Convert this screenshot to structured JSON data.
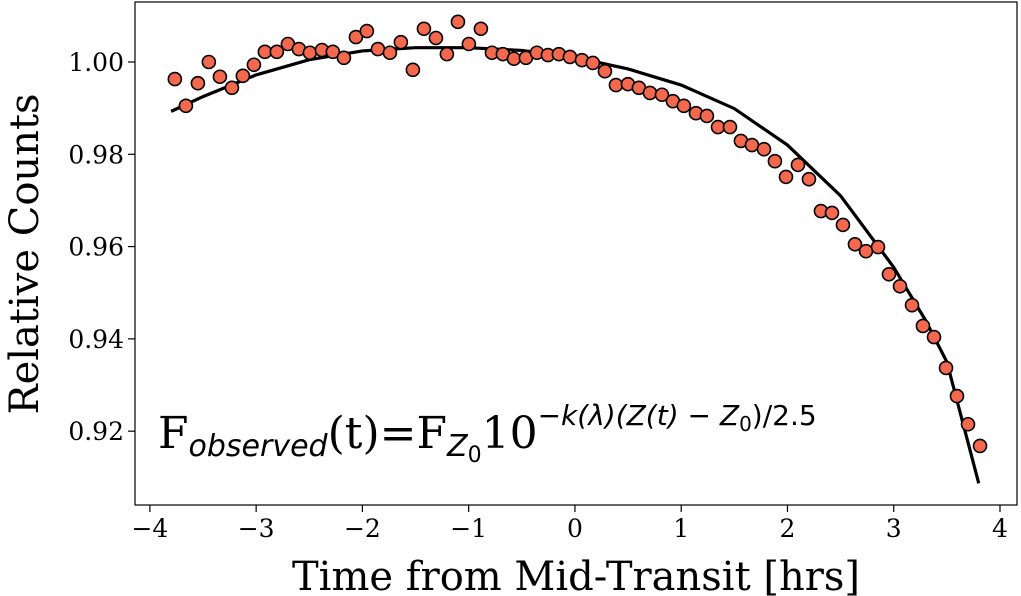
{
  "chart_data": {
    "type": "scatter",
    "xlabel": "Time from Mid-Transit [hrs]",
    "ylabel": "Relative Counts",
    "annotation": [
      "F",
      "observed",
      "(t)=F",
      "Z",
      "0",
      "10",
      "−k(λ)(Z(t) − Z",
      "0",
      ")/2.5"
    ],
    "xlim": [
      -4.14,
      4.16
    ],
    "ylim": [
      0.904,
      1.013
    ],
    "xticks": [
      {
        "value": -4,
        "label": "−4"
      },
      {
        "value": -3,
        "label": "−3"
      },
      {
        "value": -2,
        "label": "−2"
      },
      {
        "value": -1,
        "label": "−1"
      },
      0,
      1,
      2,
      3,
      4
    ],
    "yticks": [
      0.92,
      0.94,
      0.96,
      0.98,
      {
        "value": 1,
        "label": "1.00"
      }
    ],
    "color": "#f4684e",
    "edgecolor": "#000000",
    "x": [
      -3.765,
      -3.661,
      -3.548,
      -3.445,
      -3.341,
      -3.228,
      -3.125,
      -3.021,
      -2.918,
      -2.805,
      -2.701,
      -2.598,
      -2.494,
      -2.381,
      -2.278,
      -2.174,
      -2.061,
      -1.958,
      -1.854,
      -1.741,
      -1.638,
      -1.525,
      -1.421,
      -1.308,
      -1.205,
      -1.101,
      -0.998,
      -0.885,
      -0.781,
      -0.678,
      -0.574,
      -0.461,
      -0.358,
      -0.254,
      -0.151,
      -0.047,
      0.066,
      0.169,
      0.282,
      0.386,
      0.499,
      0.602,
      0.706,
      0.819,
      0.922,
      1.025,
      1.139,
      1.242,
      1.346,
      1.459,
      1.562,
      1.666,
      1.779,
      1.882,
      1.986,
      2.099,
      2.202,
      2.315,
      2.419,
      2.522,
      2.635,
      2.739,
      2.852,
      2.955,
      3.059,
      3.172,
      3.275,
      3.379,
      3.492,
      3.595,
      3.699,
      3.812
    ],
    "values": [
      0.9963,
      0.9905,
      0.9954,
      1.0,
      0.9968,
      0.9944,
      0.997,
      0.9994,
      1.0022,
      1.0022,
      1.0039,
      1.0028,
      1.002,
      1.0026,
      1.0022,
      1.0009,
      1.0054,
      1.0067,
      1.0028,
      1.002,
      1.0043,
      0.9983,
      1.0072,
      1.0052,
      1.0017,
      1.0087,
      1.0039,
      1.0072,
      1.002,
      1.0017,
      1.0007,
      1.0009,
      1.002,
      1.0015,
      1.0017,
      1.0011,
      1.0004,
      0.9998,
      0.998,
      0.995,
      0.9952,
      0.9944,
      0.9933,
      0.9929,
      0.9915,
      0.9905,
      0.9889,
      0.9883,
      0.9859,
      0.9859,
      0.9829,
      0.982,
      0.9811,
      0.9785,
      0.9751,
      0.9777,
      0.9746,
      0.9677,
      0.9673,
      0.9647,
      0.9605,
      0.959,
      0.9599,
      0.954,
      0.9514,
      0.9473,
      0.9428,
      0.9404,
      0.9337,
      0.9276,
      0.9215,
      0.9168
    ],
    "fit": {
      "color": "#000000",
      "x": [
        -3.8,
        -3.5,
        -3,
        -2.5,
        -2,
        -1.5,
        -1,
        -0.5,
        0,
        0.5,
        1,
        1.5,
        2,
        2.5,
        3,
        3.3,
        3.5,
        3.8
      ],
      "values": [
        0.9893,
        0.9925,
        0.9972,
        1.0005,
        1.0024,
        1.0031,
        1.0031,
        1.0025,
        1.001,
        0.9985,
        0.995,
        0.9899,
        0.982,
        0.971,
        0.9555,
        0.944,
        0.935,
        0.9087
      ]
    }
  }
}
